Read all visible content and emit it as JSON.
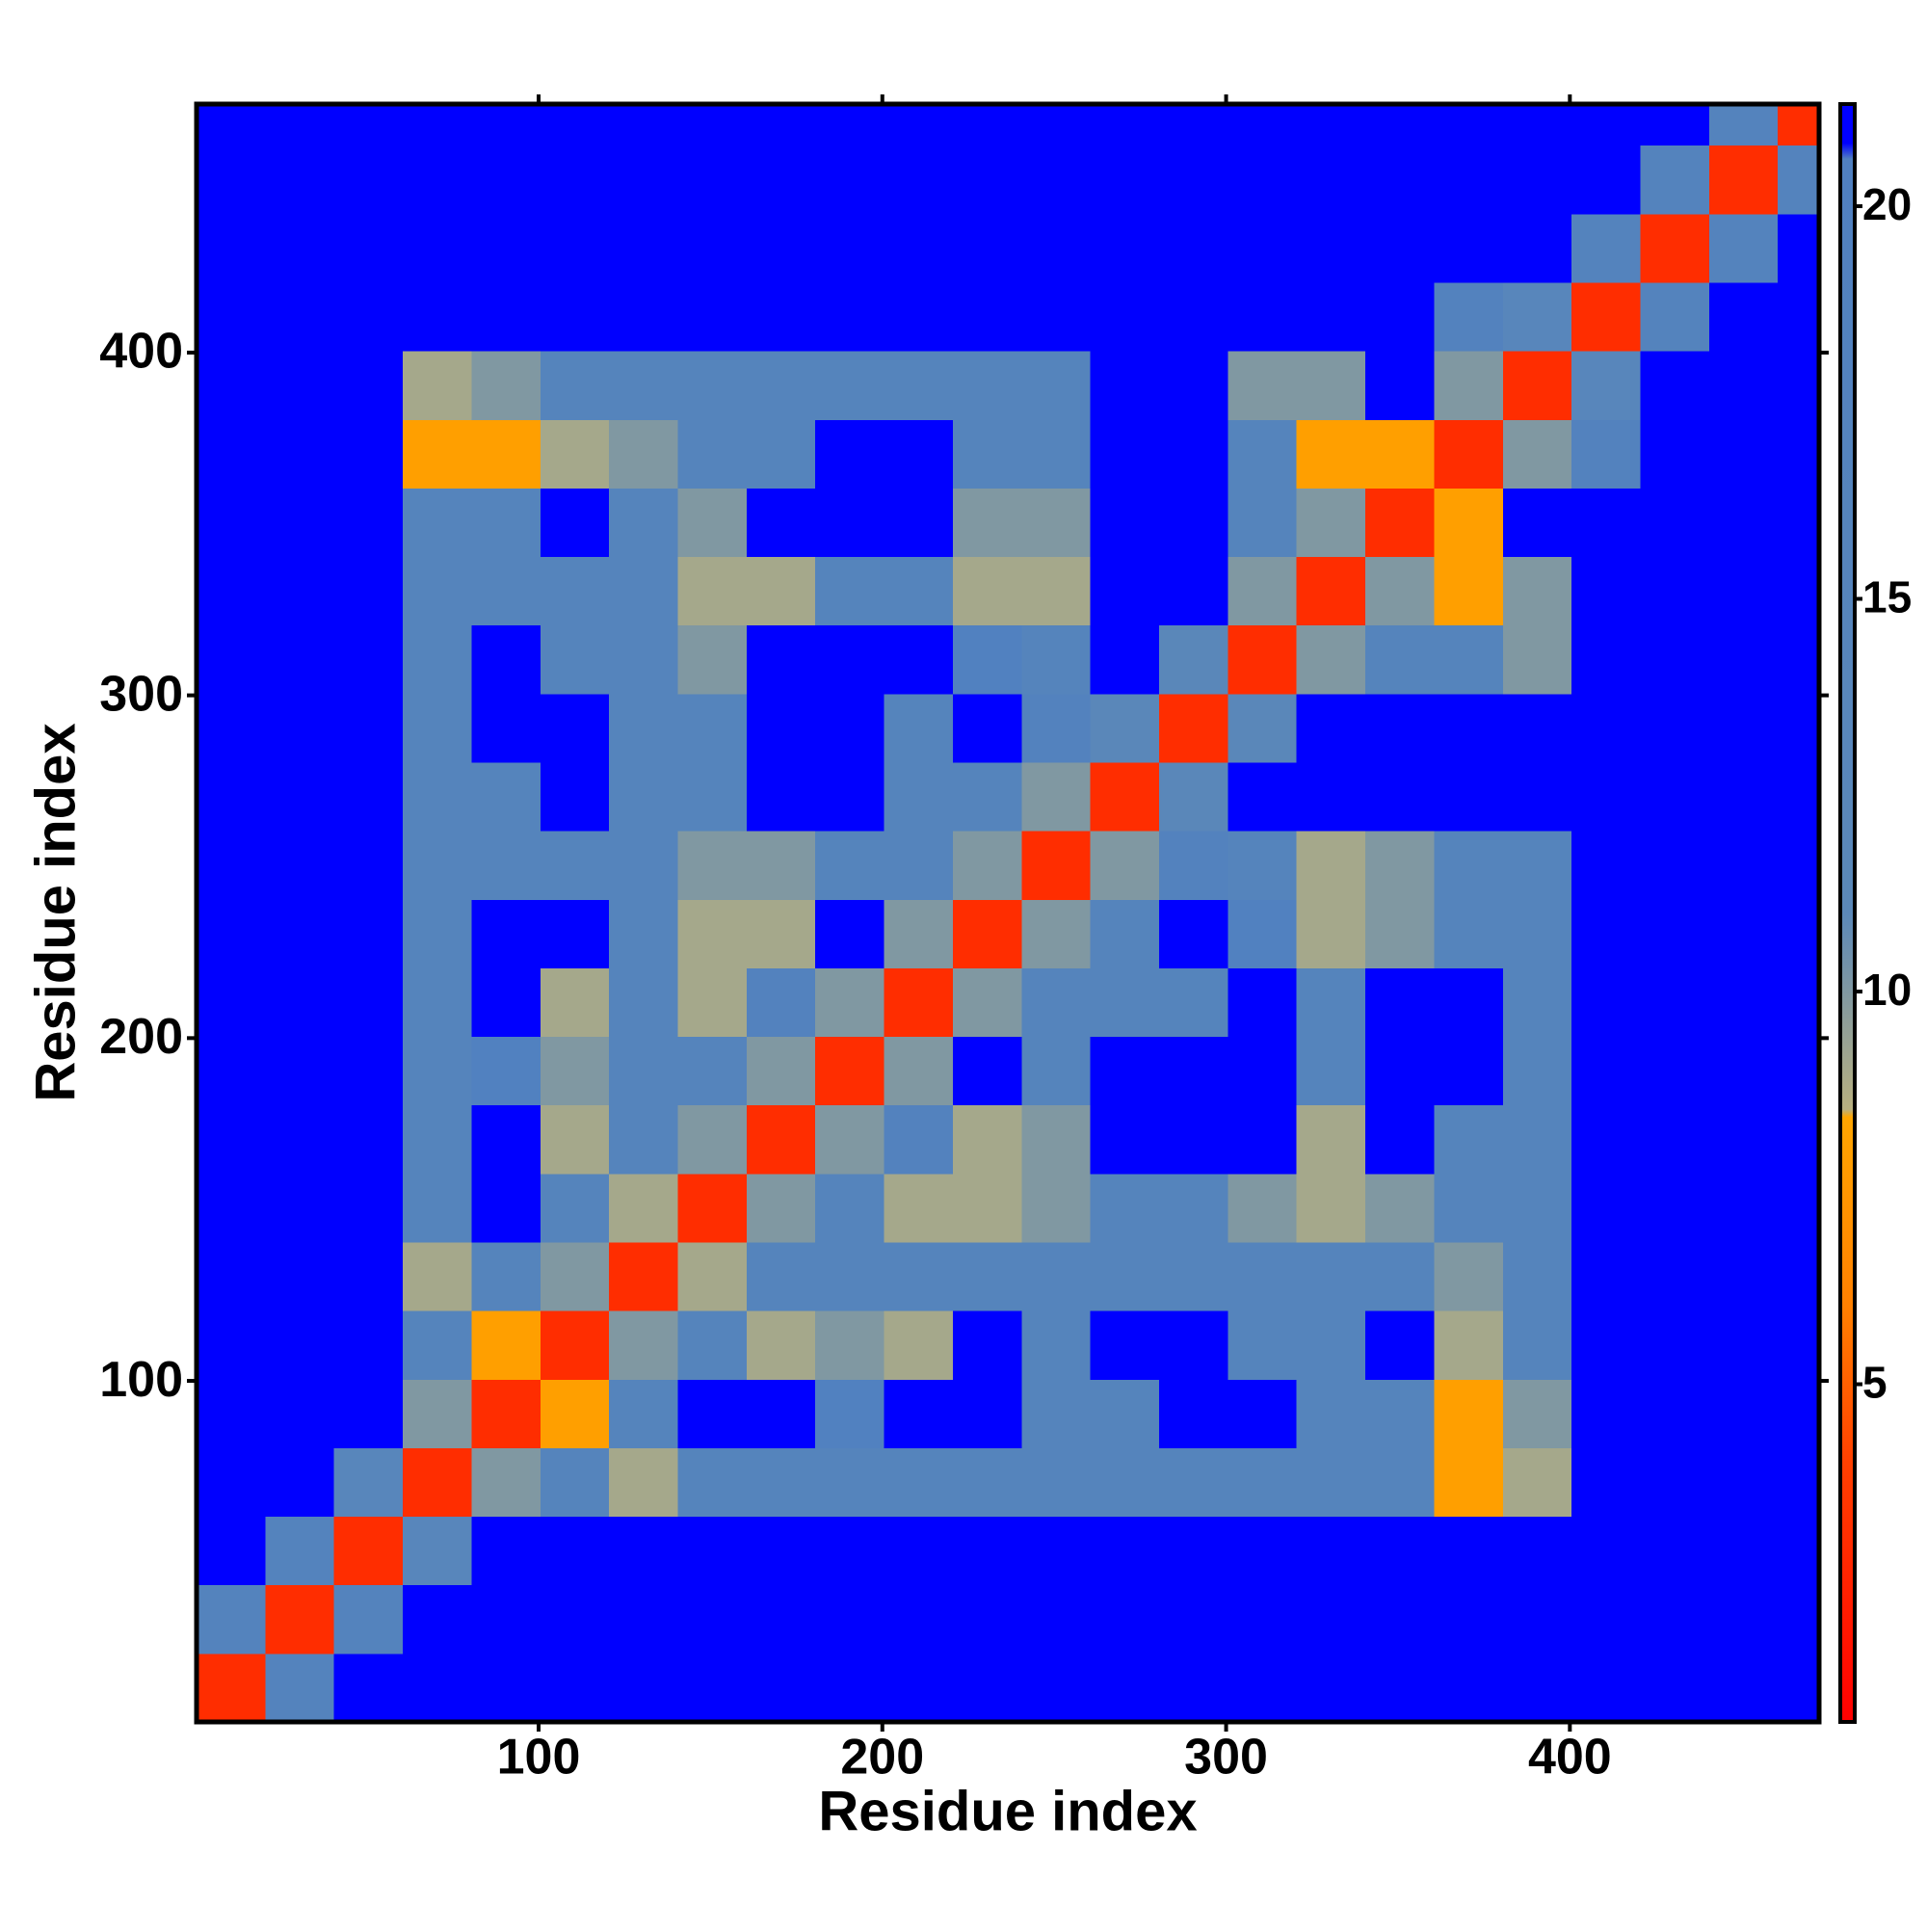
{
  "chart_data": {
    "type": "heatmap",
    "xlabel": "Residue index",
    "ylabel": "Residue index",
    "xlim": [
      0.5,
      472.5
    ],
    "ylim": [
      0.5,
      472.5
    ],
    "xticks": [
      100,
      200,
      300,
      400
    ],
    "yticks": [
      100,
      200,
      300,
      400
    ],
    "xbins": [
      0.5,
      20.5,
      40.5,
      60.5,
      80.5,
      100.5,
      120.5,
      140.5,
      160.5,
      180.5,
      200.5,
      220.5,
      240.5,
      260.5,
      280.5,
      300.5,
      320.5,
      340.5,
      360.5,
      380.5,
      400.5,
      420.5,
      440.5,
      460.5,
      472.5
    ],
    "ybins": [
      0.5,
      20.5,
      40.5,
      60.5,
      80.5,
      100.5,
      120.5,
      140.5,
      160.5,
      180.5,
      200.5,
      220.5,
      240.5,
      260.5,
      280.5,
      300.5,
      320.5,
      340.5,
      360.5,
      380.5,
      400.5,
      420.5,
      440.5,
      460.5,
      472.5
    ],
    "zlim": [
      0.7,
      21.3
    ],
    "zticks": [
      5,
      10,
      15,
      20
    ],
    "colorscale": [
      [
        0.7,
        "#ff0000"
      ],
      [
        4,
        "#ff4000"
      ],
      [
        6,
        "#ff8000"
      ],
      [
        8.4,
        "#ffa500"
      ],
      [
        8.5,
        "#b8b080"
      ],
      [
        11,
        "#5b88b8"
      ],
      [
        20.6,
        "#5080c0"
      ],
      [
        20.8,
        "#0000ff"
      ],
      [
        21.3,
        "#0000ff"
      ]
    ],
    "z": [
      [
        3,
        17,
        21,
        21,
        21,
        21,
        21,
        21,
        21,
        21,
        21,
        21,
        21,
        21,
        21,
        21,
        21,
        21,
        21,
        21,
        21,
        21,
        21,
        21
      ],
      [
        17,
        3,
        17,
        21,
        21,
        21,
        21,
        21,
        21,
        21,
        21,
        21,
        21,
        21,
        21,
        21,
        21,
        21,
        21,
        21,
        21,
        21,
        21,
        21
      ],
      [
        21,
        17,
        3,
        14,
        21,
        21,
        21,
        21,
        21,
        21,
        21,
        21,
        21,
        21,
        21,
        21,
        21,
        21,
        21,
        21,
        21,
        21,
        21,
        21
      ],
      [
        21,
        21,
        14,
        3,
        10,
        16,
        9,
        16,
        16,
        16,
        16,
        16,
        16,
        16,
        16,
        16,
        16,
        16,
        8,
        9,
        21,
        21,
        21,
        21
      ],
      [
        21,
        21,
        21,
        10,
        3,
        8,
        16,
        21,
        21,
        20,
        21,
        21,
        16,
        16,
        21,
        21,
        16,
        16,
        8,
        10,
        21,
        21,
        21,
        21
      ],
      [
        21,
        21,
        21,
        16,
        8,
        3,
        10,
        16,
        9,
        10,
        9,
        21,
        16,
        21,
        21,
        16,
        16,
        21,
        9,
        16,
        21,
        21,
        21,
        21
      ],
      [
        21,
        21,
        21,
        9,
        16,
        10,
        3,
        9,
        16,
        16,
        16,
        16,
        16,
        16,
        16,
        16,
        16,
        16,
        10,
        16,
        21,
        21,
        21,
        21
      ],
      [
        21,
        21,
        21,
        16,
        21,
        16,
        9,
        3,
        10,
        16,
        9,
        9,
        10,
        16,
        16,
        10,
        9,
        10,
        16,
        16,
        21,
        21,
        21,
        21
      ],
      [
        21,
        21,
        21,
        16,
        21,
        9,
        16,
        10,
        3,
        10,
        18,
        9,
        10,
        21,
        21,
        21,
        9,
        21,
        16,
        16,
        21,
        21,
        21,
        21
      ],
      [
        21,
        21,
        21,
        16,
        20,
        10,
        16,
        16,
        10,
        3,
        10,
        21,
        16,
        21,
        21,
        21,
        16,
        21,
        21,
        16,
        21,
        21,
        21,
        21
      ],
      [
        21,
        21,
        21,
        16,
        21,
        9,
        16,
        9,
        18,
        10,
        3,
        10,
        16,
        16,
        16,
        21,
        16,
        21,
        21,
        16,
        21,
        21,
        21,
        21
      ],
      [
        21,
        21,
        21,
        16,
        21,
        21,
        16,
        9,
        9,
        21,
        10,
        3,
        10,
        16,
        21,
        20,
        9,
        10,
        16,
        16,
        21,
        21,
        21,
        21
      ],
      [
        21,
        21,
        21,
        16,
        16,
        16,
        16,
        10,
        10,
        16,
        16,
        10,
        3,
        10,
        18,
        16,
        9,
        10,
        16,
        16,
        21,
        21,
        21,
        21
      ],
      [
        21,
        21,
        21,
        16,
        16,
        21,
        16,
        16,
        21,
        21,
        16,
        16,
        10,
        3,
        12,
        21,
        21,
        21,
        21,
        21,
        21,
        21,
        21,
        21
      ],
      [
        21,
        21,
        21,
        16,
        21,
        21,
        16,
        16,
        21,
        21,
        16,
        21,
        18,
        12,
        3,
        12,
        21,
        21,
        21,
        21,
        21,
        21,
        21,
        21
      ],
      [
        21,
        21,
        21,
        16,
        21,
        16,
        16,
        10,
        21,
        21,
        21,
        20,
        16,
        21,
        12,
        3,
        10,
        16,
        16,
        10,
        21,
        21,
        21,
        21
      ],
      [
        21,
        21,
        21,
        16,
        16,
        16,
        16,
        9,
        9,
        16,
        16,
        9,
        9,
        21,
        21,
        10,
        3,
        10,
        8,
        10,
        21,
        21,
        21,
        21
      ],
      [
        21,
        21,
        21,
        16,
        16,
        21,
        16,
        10,
        21,
        21,
        21,
        10,
        10,
        21,
        21,
        16,
        10,
        3,
        8,
        21,
        21,
        21,
        21,
        21
      ],
      [
        21,
        21,
        21,
        8,
        8,
        9,
        10,
        16,
        16,
        21,
        21,
        16,
        16,
        21,
        21,
        16,
        8,
        8,
        3,
        10,
        18,
        21,
        21,
        21
      ],
      [
        21,
        21,
        21,
        9,
        10,
        16,
        16,
        16,
        16,
        16,
        16,
        16,
        16,
        21,
        21,
        10,
        10,
        21,
        10,
        3,
        14,
        21,
        21,
        21
      ],
      [
        21,
        21,
        21,
        21,
        21,
        21,
        21,
        21,
        21,
        21,
        21,
        21,
        21,
        21,
        21,
        21,
        21,
        21,
        18,
        14,
        3,
        17,
        21,
        21
      ],
      [
        21,
        21,
        21,
        21,
        21,
        21,
        21,
        21,
        21,
        21,
        21,
        21,
        21,
        21,
        21,
        21,
        21,
        21,
        21,
        21,
        17,
        3,
        17,
        21
      ],
      [
        21,
        21,
        21,
        21,
        21,
        21,
        21,
        21,
        21,
        21,
        21,
        21,
        21,
        21,
        21,
        21,
        21,
        21,
        21,
        21,
        21,
        17,
        3,
        17
      ],
      [
        21,
        21,
        21,
        21,
        21,
        21,
        21,
        21,
        21,
        21,
        21,
        21,
        21,
        21,
        21,
        21,
        21,
        21,
        21,
        21,
        21,
        21,
        17,
        3
      ]
    ]
  }
}
